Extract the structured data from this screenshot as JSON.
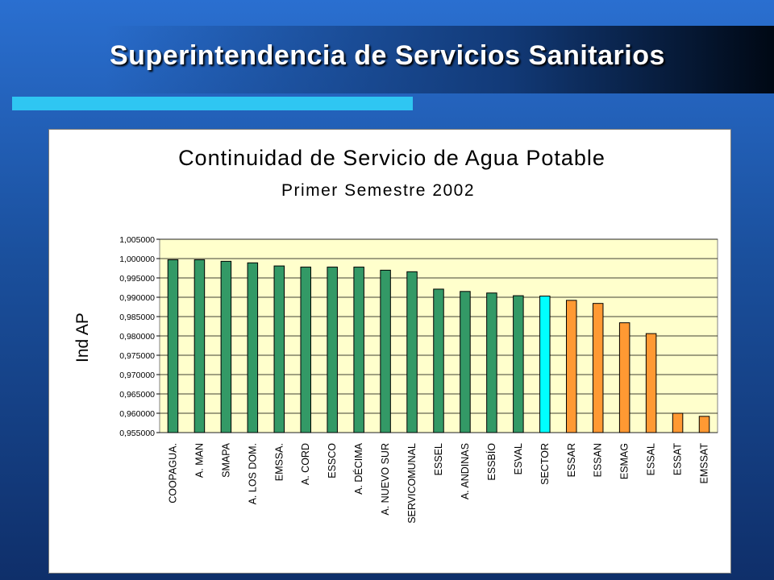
{
  "slide": {
    "title": "Superintendencia de Servicios Sanitarios"
  },
  "colors": {
    "background": "#1f5cb5",
    "accent_bar": "#2fc6f2",
    "plot_area": "#ffffcc",
    "bar_green": "#339966",
    "bar_cyan": "#00ffff",
    "bar_orange": "#ff9933"
  },
  "chart_data": {
    "type": "bar",
    "title": "Continuidad de Servicio de Agua Potable",
    "subtitle": "Primer Semestre 2002",
    "xlabel": "",
    "ylabel": "Ind AP",
    "ylim": [
      0.955,
      1.005
    ],
    "grid": true,
    "legend": "none",
    "yticks": [
      "1,005000",
      "1,000000",
      "0,995000",
      "0,990000",
      "0,985000",
      "0,980000",
      "0,975000",
      "0,970000",
      "0,965000",
      "0,960000",
      "0,955000"
    ],
    "ytick_values": [
      1.005,
      1.0,
      0.995,
      0.99,
      0.985,
      0.98,
      0.975,
      0.97,
      0.965,
      0.96,
      0.955
    ],
    "categories": [
      "COOPAGUA.",
      "A. MAN",
      "SMAPA",
      "A. LOS DOM.",
      "EMSSA.",
      "A. CORD",
      "ESSCO",
      "A. DÉCIMA",
      "A. NUEVO SUR",
      "SERVICOMUNAL",
      "ESSEL",
      "A. ANDINAS",
      "ESSBÍO",
      "ESVAL",
      "SECTOR",
      "ESSAR",
      "ESSAN",
      "ESMAG",
      "ESSAL",
      "ESSAT",
      "EMSSAT"
    ],
    "values": [
      0.9997,
      0.9997,
      0.9993,
      0.9989,
      0.9981,
      0.9978,
      0.9978,
      0.9978,
      0.997,
      0.9966,
      0.9921,
      0.9915,
      0.9911,
      0.9904,
      0.9903,
      0.9892,
      0.9884,
      0.9834,
      0.9806,
      0.96,
      0.9592
    ],
    "bar_colors": [
      "#339966",
      "#339966",
      "#339966",
      "#339966",
      "#339966",
      "#339966",
      "#339966",
      "#339966",
      "#339966",
      "#339966",
      "#339966",
      "#339966",
      "#339966",
      "#339966",
      "#00ffff",
      "#ff9933",
      "#ff9933",
      "#ff9933",
      "#ff9933",
      "#ff9933",
      "#ff9933"
    ]
  }
}
